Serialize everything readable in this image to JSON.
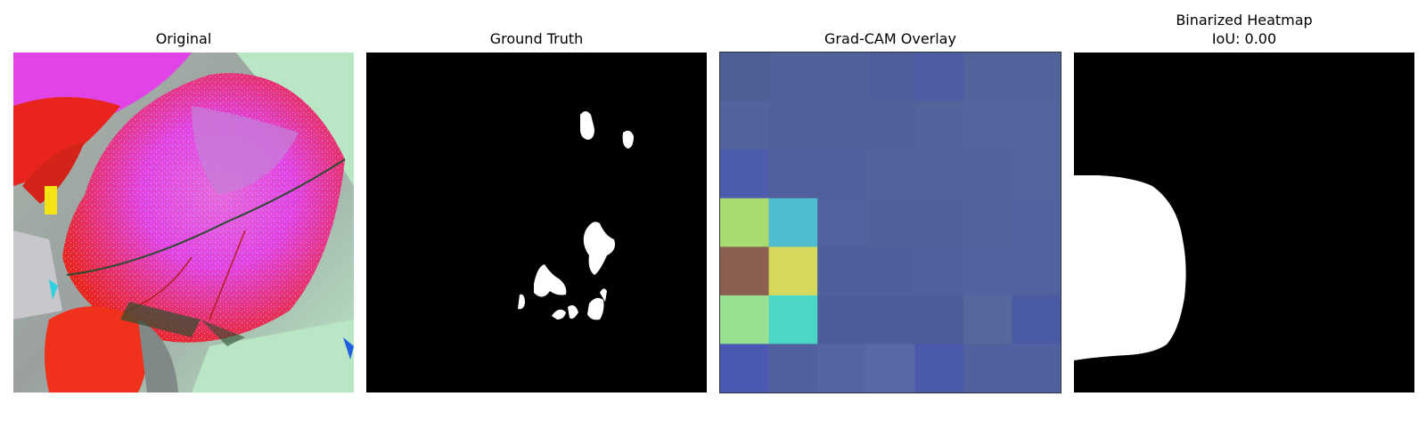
{
  "panels": {
    "original": {
      "title": "Original"
    },
    "ground_truth": {
      "title": "Ground Truth"
    },
    "gradcam": {
      "title": "Grad-CAM Overlay",
      "grid": [
        [
          "#505e96",
          "#52609a",
          "#51609a",
          "#4f5f9b",
          "#4f5ca6",
          "#52629a",
          "#52629a"
        ],
        [
          "#53639c",
          "#51609a",
          "#51609a",
          "#50609a",
          "#52629b",
          "#53649e",
          "#53649e"
        ],
        [
          "#4d5cac",
          "#51609c",
          "#51609c",
          "#53639e",
          "#52629c",
          "#52639b",
          "#53649e"
        ],
        [
          "#a8dc70",
          "#4fbdd0",
          "#51629e",
          "#51619c",
          "#51619c",
          "#51629c",
          "#51629e"
        ],
        [
          "#8b5f52",
          "#d4d85c",
          "#4e5f9c",
          "#4f5f9c",
          "#50609c",
          "#52629e",
          "#52629e"
        ],
        [
          "#98e092",
          "#4cd6c6",
          "#4e5c9c",
          "#4e5d9a",
          "#4d5b98",
          "#56679d",
          "#4b5aa4"
        ],
        [
          "#4b59b2",
          "#52609e",
          "#5564a4",
          "#5b68a8",
          "#4a59aa",
          "#51609e",
          "#51609e"
        ]
      ]
    },
    "binarized": {
      "title_line1": "Binarized Heatmap",
      "title_line2": "IoU: 0.00"
    }
  },
  "colors": {
    "background": "#ffffff",
    "mask_fill": "#ffffff",
    "mask_background": "#000000",
    "leaf_magenta": "#e044e6",
    "leaf_red": "#e8241c",
    "pale_green": "#b9e6c4"
  }
}
